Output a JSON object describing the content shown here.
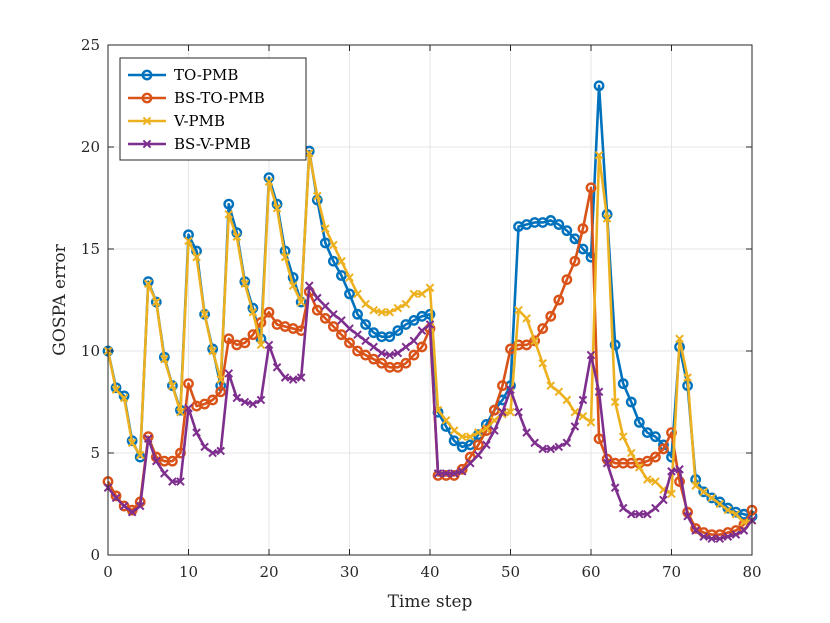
{
  "chart_data": {
    "type": "line",
    "title": "",
    "xlabel": "Time step",
    "ylabel": "GOSPA error",
    "xlim": [
      0,
      80
    ],
    "ylim": [
      0,
      25
    ],
    "xticks": [
      0,
      10,
      20,
      30,
      40,
      50,
      60,
      70,
      80
    ],
    "yticks": [
      0,
      5,
      10,
      15,
      20,
      25
    ],
    "grid": true,
    "legend_position": "top-left",
    "x": [
      0,
      1,
      2,
      3,
      4,
      5,
      6,
      7,
      8,
      9,
      10,
      11,
      12,
      13,
      14,
      15,
      16,
      17,
      18,
      19,
      20,
      21,
      22,
      23,
      24,
      25,
      26,
      27,
      28,
      29,
      30,
      31,
      32,
      33,
      34,
      35,
      36,
      37,
      38,
      39,
      40,
      41,
      42,
      43,
      44,
      45,
      46,
      47,
      48,
      49,
      50,
      51,
      52,
      53,
      54,
      55,
      56,
      57,
      58,
      59,
      60,
      61,
      62,
      63,
      64,
      65,
      66,
      67,
      68,
      69,
      70,
      71,
      72,
      73,
      74,
      75,
      76,
      77,
      78,
      79,
      80
    ],
    "series": [
      {
        "name": "TO-PMB",
        "color": "#0072BD",
        "marker": "circle",
        "values": [
          10.0,
          8.2,
          7.8,
          5.6,
          4.8,
          13.4,
          12.4,
          9.7,
          8.3,
          7.1,
          15.7,
          14.9,
          11.8,
          10.1,
          8.3,
          17.2,
          15.8,
          13.4,
          12.1,
          10.6,
          18.5,
          17.2,
          14.9,
          13.6,
          12.4,
          19.8,
          17.4,
          15.3,
          14.4,
          13.7,
          12.8,
          11.8,
          11.3,
          10.9,
          10.7,
          10.7,
          11.0,
          11.3,
          11.5,
          11.7,
          11.8,
          7.0,
          6.3,
          5.6,
          5.3,
          5.4,
          5.9,
          6.4,
          7.1,
          7.6,
          8.3,
          16.1,
          16.2,
          16.3,
          16.3,
          16.4,
          16.2,
          15.9,
          15.5,
          15.0,
          14.6,
          23.0,
          16.7,
          10.3,
          8.4,
          7.5,
          6.5,
          6.0,
          5.8,
          5.4,
          4.8,
          10.2,
          8.3,
          3.7,
          3.1,
          2.8,
          2.6,
          2.3,
          2.1,
          2.0,
          1.9
        ]
      },
      {
        "name": "BS-TO-PMB",
        "color": "#D95319",
        "marker": "circle",
        "values": [
          3.6,
          2.9,
          2.4,
          2.2,
          2.6,
          5.8,
          4.8,
          4.6,
          4.6,
          5.0,
          8.4,
          7.3,
          7.4,
          7.6,
          8.0,
          10.6,
          10.3,
          10.4,
          10.8,
          11.4,
          11.9,
          11.3,
          11.2,
          11.1,
          11.0,
          12.9,
          12.0,
          11.6,
          11.2,
          10.8,
          10.4,
          10.0,
          9.8,
          9.6,
          9.4,
          9.2,
          9.2,
          9.4,
          9.8,
          10.2,
          11.1,
          3.9,
          3.9,
          3.9,
          4.2,
          4.8,
          5.4,
          6.1,
          7.1,
          8.3,
          10.1,
          10.3,
          10.3,
          10.5,
          11.1,
          11.7,
          12.5,
          13.5,
          14.4,
          16.0,
          18.0,
          5.7,
          4.7,
          4.5,
          4.5,
          4.5,
          4.5,
          4.6,
          4.8,
          5.2,
          6.0,
          3.6,
          2.1,
          1.3,
          1.1,
          1.0,
          1.0,
          1.1,
          1.2,
          1.5,
          2.2
        ]
      },
      {
        "name": "V-PMB",
        "color": "#EDB120",
        "marker": "x",
        "values": [
          10.0,
          8.1,
          7.7,
          5.5,
          4.9,
          13.3,
          12.4,
          9.6,
          8.3,
          7.0,
          15.4,
          14.6,
          11.8,
          10.0,
          8.6,
          16.7,
          15.6,
          13.3,
          11.9,
          10.3,
          18.3,
          17.0,
          14.6,
          13.2,
          12.4,
          19.7,
          17.6,
          16.0,
          15.2,
          14.4,
          13.6,
          12.8,
          12.3,
          12.0,
          11.9,
          11.9,
          12.1,
          12.3,
          12.8,
          12.8,
          13.1,
          7.1,
          6.6,
          6.1,
          5.8,
          5.8,
          6.0,
          6.2,
          6.6,
          6.9,
          7.0,
          12.0,
          11.6,
          10.5,
          9.4,
          8.3,
          8.0,
          7.6,
          7.0,
          6.8,
          6.5,
          19.6,
          16.5,
          7.5,
          5.8,
          5.0,
          4.3,
          3.7,
          3.6,
          3.2,
          3.0,
          10.6,
          8.7,
          3.4,
          3.1,
          2.8,
          2.5,
          2.2,
          2.0,
          1.6,
          1.7
        ]
      },
      {
        "name": "BS-V-PMB",
        "color": "#7E2F8E",
        "marker": "x",
        "values": [
          3.3,
          2.8,
          2.4,
          2.1,
          2.4,
          5.7,
          4.6,
          4.0,
          3.6,
          3.6,
          7.2,
          6.0,
          5.3,
          5.0,
          5.1,
          8.9,
          7.7,
          7.5,
          7.4,
          7.6,
          10.3,
          9.2,
          8.7,
          8.6,
          8.7,
          13.2,
          12.6,
          12.2,
          11.8,
          11.5,
          11.1,
          10.8,
          10.5,
          10.2,
          9.9,
          9.8,
          9.9,
          10.2,
          10.5,
          11.0,
          11.3,
          4.0,
          4.0,
          4.0,
          4.1,
          4.5,
          4.9,
          5.4,
          6.1,
          7.0,
          8.1,
          7.0,
          6.0,
          5.5,
          5.2,
          5.2,
          5.3,
          5.5,
          6.3,
          7.6,
          9.8,
          8.0,
          4.5,
          3.3,
          2.3,
          2.0,
          2.0,
          2.0,
          2.3,
          2.7,
          4.1,
          4.2,
          1.9,
          1.2,
          0.9,
          0.8,
          0.8,
          0.9,
          1.0,
          1.2,
          1.7
        ]
      }
    ]
  }
}
